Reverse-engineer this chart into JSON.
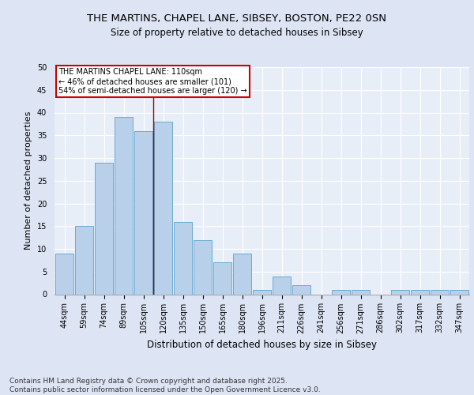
{
  "title1": "THE MARTINS, CHAPEL LANE, SIBSEY, BOSTON, PE22 0SN",
  "title2": "Size of property relative to detached houses in Sibsey",
  "xlabel": "Distribution of detached houses by size in Sibsey",
  "ylabel": "Number of detached properties",
  "categories": [
    "44sqm",
    "59sqm",
    "74sqm",
    "89sqm",
    "105sqm",
    "120sqm",
    "135sqm",
    "150sqm",
    "165sqm",
    "180sqm",
    "196sqm",
    "211sqm",
    "226sqm",
    "241sqm",
    "256sqm",
    "271sqm",
    "286sqm",
    "302sqm",
    "317sqm",
    "332sqm",
    "347sqm"
  ],
  "values": [
    9,
    15,
    29,
    39,
    36,
    38,
    16,
    12,
    7,
    9,
    1,
    4,
    2,
    0,
    1,
    1,
    0,
    1,
    1,
    1,
    1
  ],
  "bar_color": "#b8d0ea",
  "bar_edge_color": "#6aaad4",
  "vline_x": 4.5,
  "vline_color": "#aa0000",
  "annotation_text": "THE MARTINS CHAPEL LANE: 110sqm\n← 46% of detached houses are smaller (101)\n54% of semi-detached houses are larger (120) →",
  "annotation_box_color": "#ffffff",
  "annotation_box_edge": "#cc0000",
  "ylim": [
    0,
    50
  ],
  "yticks": [
    0,
    5,
    10,
    15,
    20,
    25,
    30,
    35,
    40,
    45,
    50
  ],
  "background_color": "#e8eef8",
  "fig_background_color": "#dde5f4",
  "grid_color": "#ffffff",
  "footer": "Contains HM Land Registry data © Crown copyright and database right 2025.\nContains public sector information licensed under the Open Government Licence v3.0.",
  "title_fontsize": 9.5,
  "subtitle_fontsize": 8.5,
  "axis_label_fontsize": 8,
  "tick_fontsize": 7,
  "footer_fontsize": 6.5
}
